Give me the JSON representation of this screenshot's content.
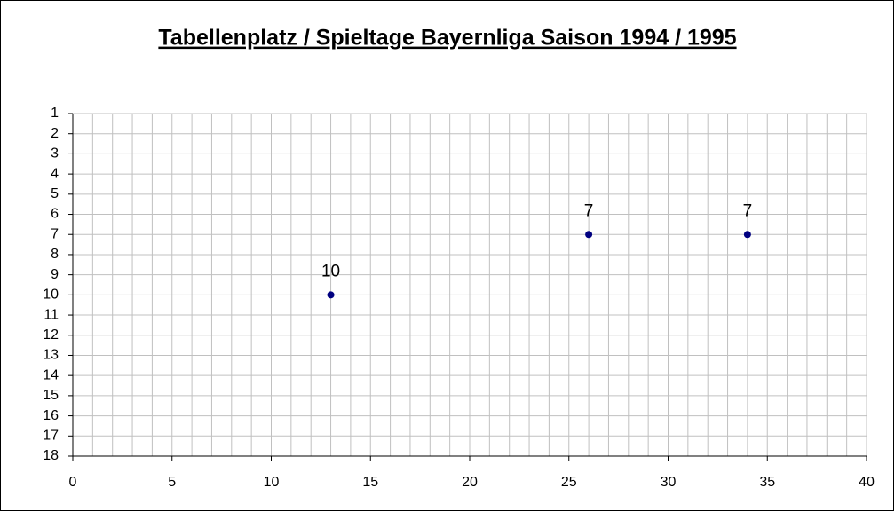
{
  "chart_data": {
    "type": "scatter",
    "title": "Tabellenplatz / Spieltage Bayernliga Saison 1994 / 1995",
    "x": [
      13,
      26,
      34
    ],
    "series": [
      {
        "color": "#000080",
        "values": [
          10,
          7,
          7
        ]
      }
    ],
    "xlim": [
      0,
      40
    ],
    "xticks": [
      0,
      5,
      10,
      15,
      20,
      25,
      30,
      35,
      40
    ],
    "ylim": [
      1,
      18
    ],
    "yticks": [
      1,
      2,
      3,
      4,
      5,
      6,
      7,
      8,
      9,
      10,
      11,
      12,
      13,
      14,
      15,
      16,
      17,
      18
    ],
    "y_inverted": true,
    "grid": true,
    "x_grid_interval": 1
  }
}
